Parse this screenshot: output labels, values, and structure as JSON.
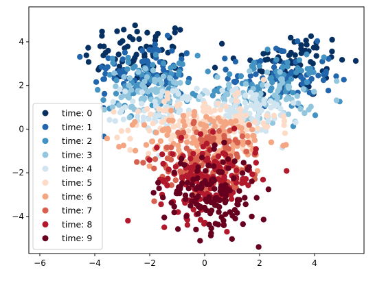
{
  "chart_data": {
    "type": "scatter",
    "title": "",
    "xlabel": "",
    "ylabel": "",
    "xlim": [
      -6.4,
      5.8
    ],
    "ylim": [
      -5.7,
      5.6
    ],
    "xticks": [
      -6,
      -4,
      -2,
      0,
      2,
      4
    ],
    "yticks": [
      -4,
      -2,
      0,
      2,
      4
    ],
    "tick_labels_x": [
      "−6",
      "−4",
      "−2",
      "0",
      "2",
      "4"
    ],
    "tick_labels_y": [
      "−4",
      "−2",
      "0",
      "2",
      "4"
    ],
    "legend": {
      "placement": "lower-left"
    },
    "grid": false,
    "series": [
      {
        "name": "time: 0",
        "color": "#053061",
        "clusters": [
          {
            "cx": -2.4,
            "cy": 3.4,
            "sx": 1.0,
            "sy": 0.8,
            "n": 75
          },
          {
            "cx": 3.2,
            "cy": 3.0,
            "sx": 1.0,
            "sy": 0.8,
            "n": 75
          }
        ]
      },
      {
        "name": "time: 1",
        "color": "#2166ac",
        "clusters": [
          {
            "cx": -2.2,
            "cy": 2.6,
            "sx": 0.95,
            "sy": 0.7,
            "n": 75
          },
          {
            "cx": 2.8,
            "cy": 2.4,
            "sx": 0.95,
            "sy": 0.7,
            "n": 75
          }
        ]
      },
      {
        "name": "time: 2",
        "color": "#4393c3",
        "clusters": [
          {
            "cx": -2.0,
            "cy": 2.1,
            "sx": 0.9,
            "sy": 0.65,
            "n": 75
          },
          {
            "cx": 2.4,
            "cy": 2.0,
            "sx": 0.9,
            "sy": 0.65,
            "n": 75
          }
        ]
      },
      {
        "name": "time: 3",
        "color": "#92c5de",
        "clusters": [
          {
            "cx": -1.8,
            "cy": 1.5,
            "sx": 0.9,
            "sy": 0.6,
            "n": 75
          },
          {
            "cx": 2.1,
            "cy": 1.4,
            "sx": 0.9,
            "sy": 0.6,
            "n": 75
          }
        ]
      },
      {
        "name": "time: 4",
        "color": "#d1e5f0",
        "clusters": [
          {
            "cx": -1.2,
            "cy": 0.9,
            "sx": 0.9,
            "sy": 0.55,
            "n": 75
          },
          {
            "cx": 1.6,
            "cy": 0.8,
            "sx": 0.9,
            "sy": 0.55,
            "n": 75
          }
        ]
      },
      {
        "name": "time: 5",
        "color": "#fddbc7",
        "clusters": [
          {
            "cx": 0.0,
            "cy": 0.2,
            "sx": 1.3,
            "sy": 0.6,
            "n": 150
          }
        ]
      },
      {
        "name": "time: 6",
        "color": "#f4a582",
        "clusters": [
          {
            "cx": 0.2,
            "cy": -0.6,
            "sx": 1.2,
            "sy": 0.7,
            "n": 150
          }
        ]
      },
      {
        "name": "time: 7",
        "color": "#d6604d",
        "clusters": [
          {
            "cx": 0.2,
            "cy": -1.4,
            "sx": 1.0,
            "sy": 0.8,
            "n": 150
          }
        ]
      },
      {
        "name": "time: 8",
        "color": "#b2182b",
        "clusters": [
          {
            "cx": 0.1,
            "cy": -2.3,
            "sx": 0.9,
            "sy": 0.9,
            "n": 150
          }
        ]
      },
      {
        "name": "time: 9",
        "color": "#67001f",
        "clusters": [
          {
            "cx": 0.2,
            "cy": -3.0,
            "sx": 0.85,
            "sy": 0.9,
            "n": 150
          }
        ]
      }
    ]
  }
}
